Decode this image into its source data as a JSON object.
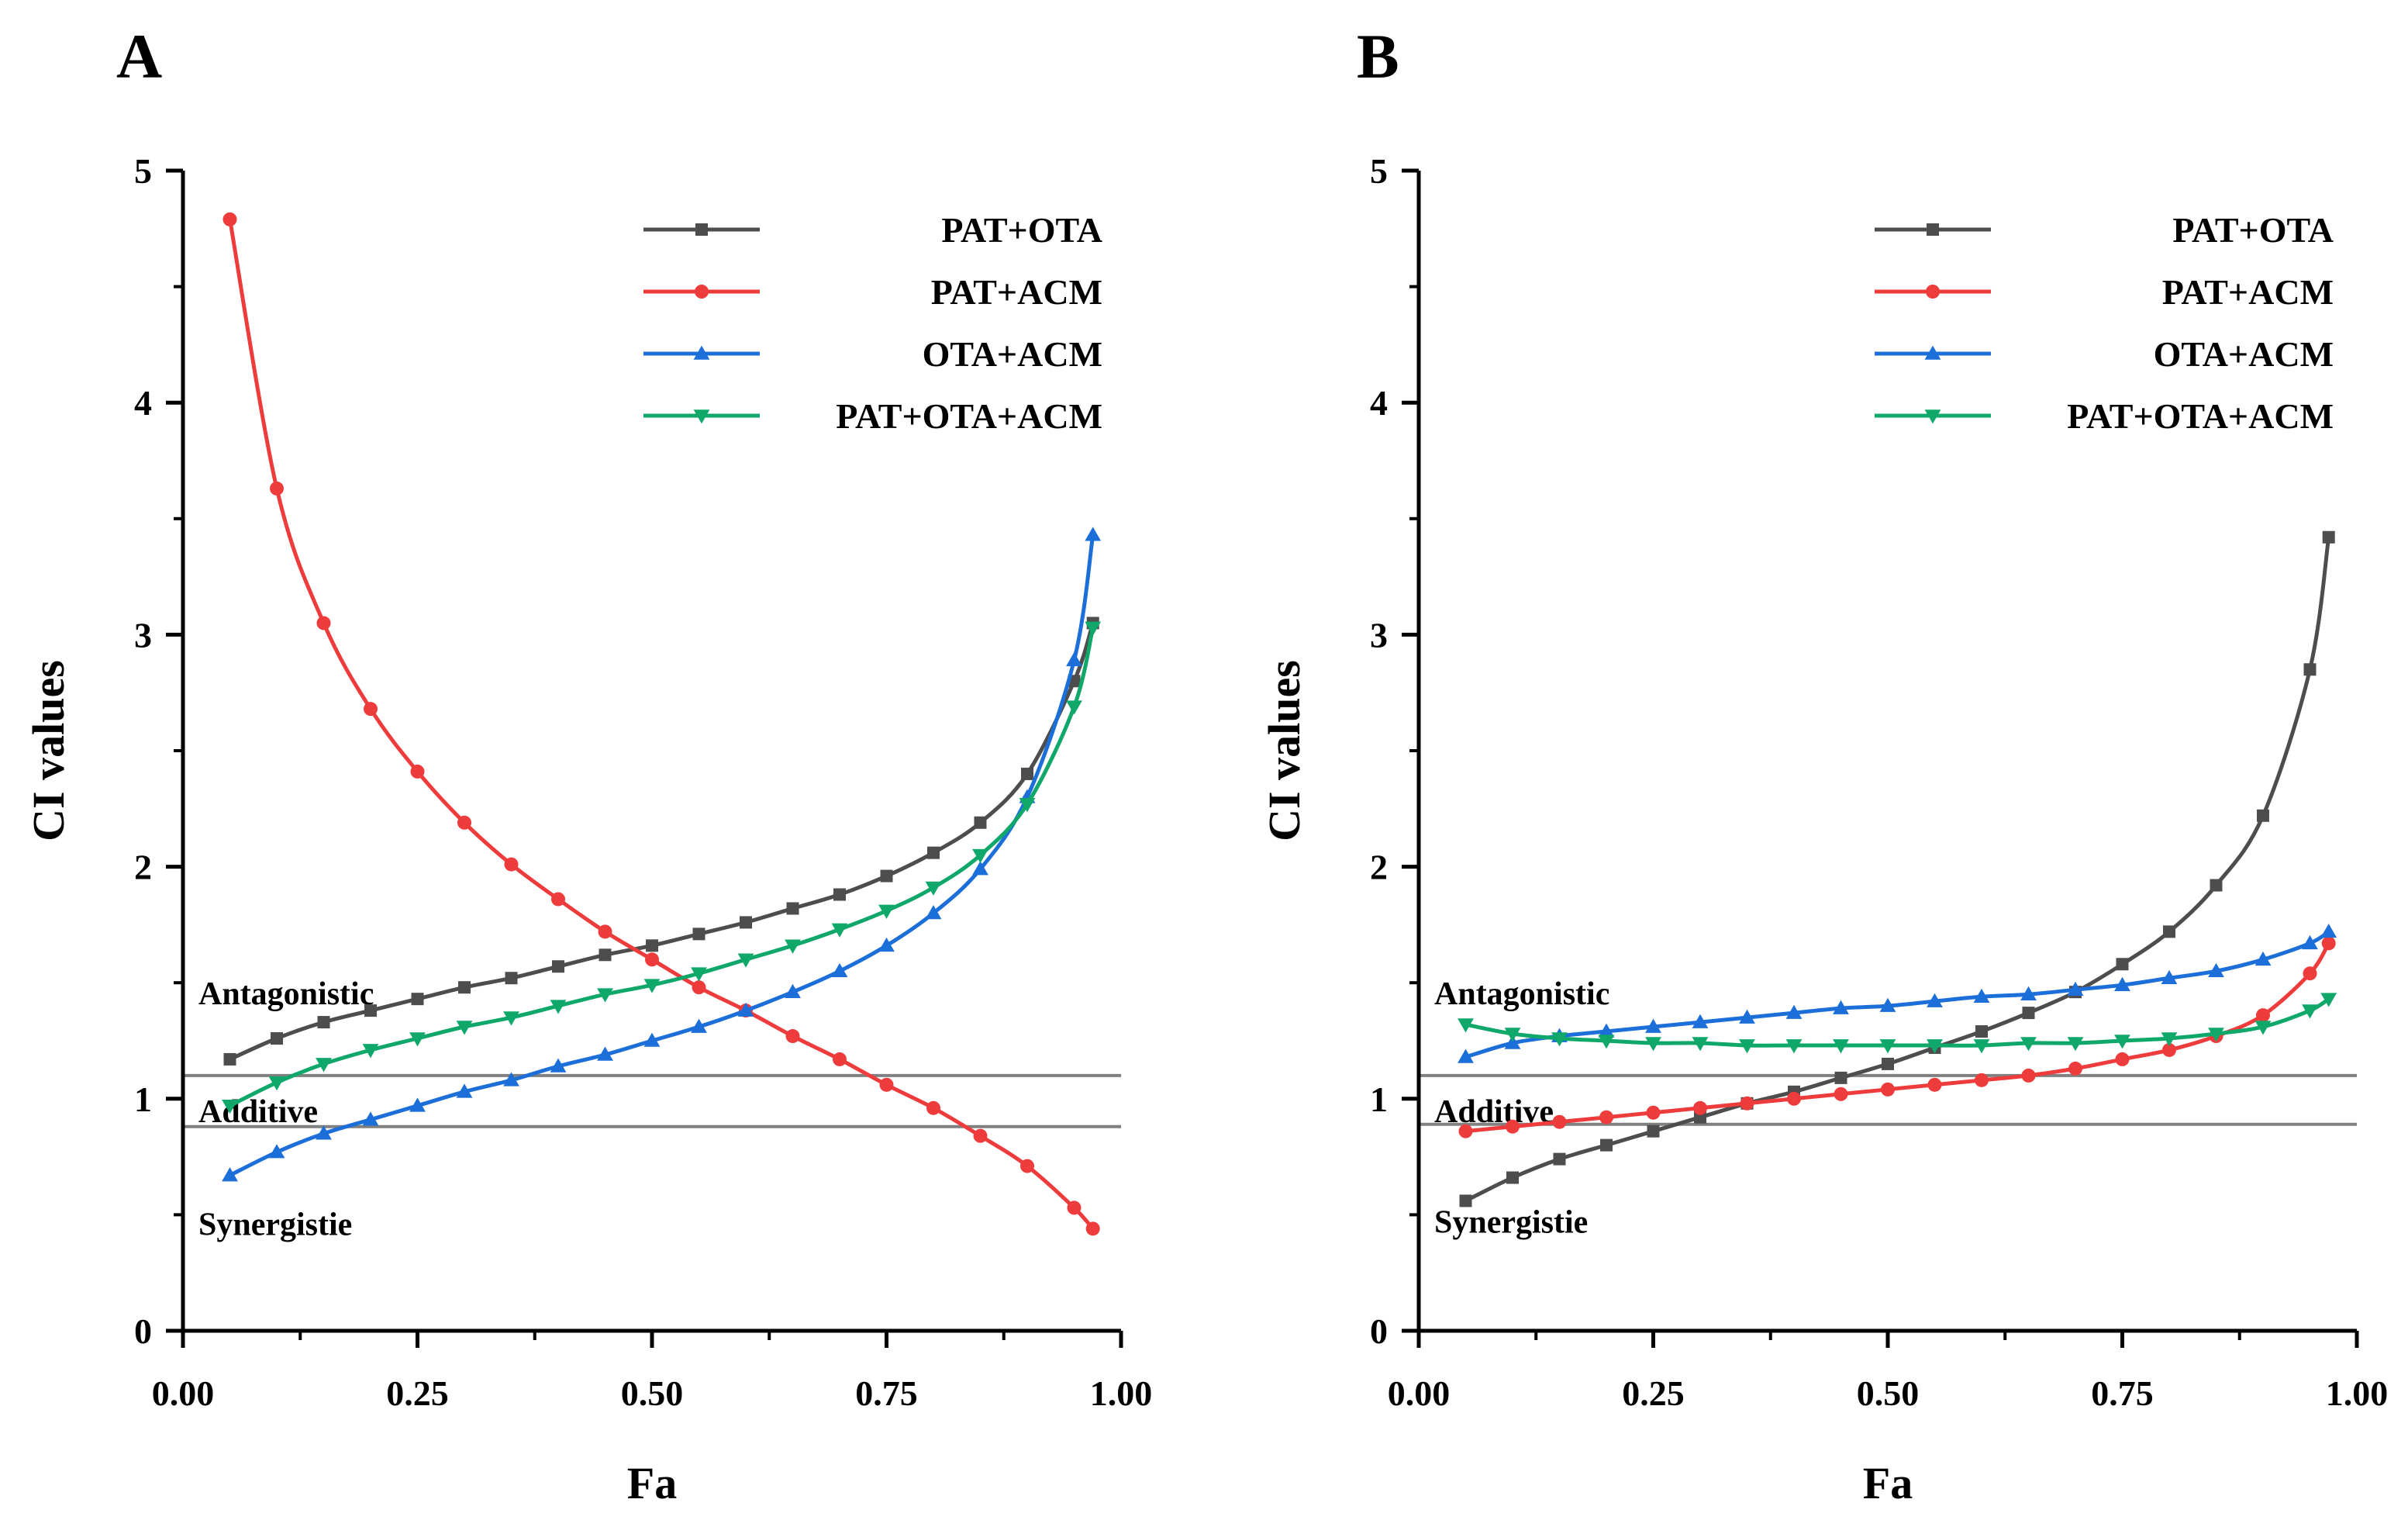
{
  "chart_data": [
    {
      "panel": "A",
      "type": "line",
      "xlabel": "Fa",
      "ylabel": "CI values",
      "xlim": [
        0,
        1
      ],
      "ylim": [
        0,
        5
      ],
      "x_ticks": [
        "0.00",
        "0.25",
        "0.50",
        "0.75",
        "1.00"
      ],
      "y_ticks": [
        "0",
        "1",
        "2",
        "3",
        "4",
        "5"
      ],
      "legend_position": "top-right",
      "reference_lines": [
        1.1,
        0.88
      ],
      "region_labels": [
        "Antagonistic",
        "Additive",
        "Synergistie"
      ],
      "x": [
        0.05,
        0.1,
        0.15,
        0.2,
        0.25,
        0.3,
        0.35,
        0.4,
        0.45,
        0.5,
        0.55,
        0.6,
        0.65,
        0.7,
        0.75,
        0.8,
        0.85,
        0.9,
        0.95,
        0.97
      ],
      "series": [
        {
          "name": "PAT+OTA",
          "color": "#4d4d4d",
          "marker": "square",
          "values": [
            1.17,
            1.26,
            1.33,
            1.38,
            1.43,
            1.48,
            1.52,
            1.57,
            1.62,
            1.66,
            1.71,
            1.76,
            1.82,
            1.88,
            1.96,
            2.06,
            2.19,
            2.4,
            2.8,
            3.05
          ]
        },
        {
          "name": "PAT+ACM",
          "color": "#ee3b3b",
          "marker": "circle",
          "values": [
            4.79,
            3.63,
            3.05,
            2.68,
            2.41,
            2.19,
            2.01,
            1.86,
            1.72,
            1.6,
            1.48,
            1.38,
            1.27,
            1.17,
            1.06,
            0.96,
            0.84,
            0.71,
            0.53,
            0.44
          ]
        },
        {
          "name": "OTA+ACM",
          "color": "#1c6fd8",
          "marker": "triangle-up",
          "values": [
            0.67,
            0.77,
            0.85,
            0.91,
            0.97,
            1.03,
            1.08,
            1.14,
            1.19,
            1.25,
            1.31,
            1.38,
            1.46,
            1.55,
            1.66,
            1.8,
            1.99,
            2.3,
            2.89,
            3.43
          ]
        },
        {
          "name": "PAT+OTA+ACM",
          "color": "#0fa86a",
          "marker": "triangle-down",
          "values": [
            0.97,
            1.07,
            1.15,
            1.21,
            1.26,
            1.31,
            1.35,
            1.4,
            1.45,
            1.49,
            1.54,
            1.6,
            1.66,
            1.73,
            1.81,
            1.91,
            2.05,
            2.27,
            2.69,
            3.03
          ]
        }
      ]
    },
    {
      "panel": "B",
      "type": "line",
      "xlabel": "Fa",
      "ylabel": "CI values",
      "xlim": [
        0,
        1
      ],
      "ylim": [
        0,
        5
      ],
      "x_ticks": [
        "0.00",
        "0.25",
        "0.50",
        "0.75",
        "1.00"
      ],
      "y_ticks": [
        "0",
        "1",
        "2",
        "3",
        "4",
        "5"
      ],
      "legend_position": "top-right",
      "reference_lines": [
        1.1,
        0.89
      ],
      "region_labels": [
        "Antagonistic",
        "Additive",
        "Synergistie"
      ],
      "x": [
        0.05,
        0.1,
        0.15,
        0.2,
        0.25,
        0.3,
        0.35,
        0.4,
        0.45,
        0.5,
        0.55,
        0.6,
        0.65,
        0.7,
        0.75,
        0.8,
        0.85,
        0.9,
        0.95,
        0.97
      ],
      "series": [
        {
          "name": "PAT+OTA",
          "color": "#4d4d4d",
          "marker": "square",
          "values": [
            0.56,
            0.66,
            0.74,
            0.8,
            0.86,
            0.92,
            0.98,
            1.03,
            1.09,
            1.15,
            1.22,
            1.29,
            1.37,
            1.46,
            1.58,
            1.72,
            1.92,
            2.22,
            2.85,
            3.42
          ]
        },
        {
          "name": "PAT+ACM",
          "color": "#ee3b3b",
          "marker": "circle",
          "values": [
            0.86,
            0.88,
            0.9,
            0.92,
            0.94,
            0.96,
            0.98,
            1.0,
            1.02,
            1.04,
            1.06,
            1.08,
            1.1,
            1.13,
            1.17,
            1.21,
            1.27,
            1.36,
            1.54,
            1.67
          ]
        },
        {
          "name": "OTA+ACM",
          "color": "#1c6fd8",
          "marker": "triangle-up",
          "values": [
            1.18,
            1.24,
            1.27,
            1.29,
            1.31,
            1.33,
            1.35,
            1.37,
            1.39,
            1.4,
            1.42,
            1.44,
            1.45,
            1.47,
            1.49,
            1.52,
            1.55,
            1.6,
            1.67,
            1.72
          ]
        },
        {
          "name": "PAT+OTA+ACM",
          "color": "#0fa86a",
          "marker": "triangle-down",
          "values": [
            1.32,
            1.28,
            1.26,
            1.25,
            1.24,
            1.24,
            1.23,
            1.23,
            1.23,
            1.23,
            1.23,
            1.23,
            1.24,
            1.24,
            1.25,
            1.26,
            1.28,
            1.31,
            1.38,
            1.43
          ]
        }
      ]
    }
  ]
}
